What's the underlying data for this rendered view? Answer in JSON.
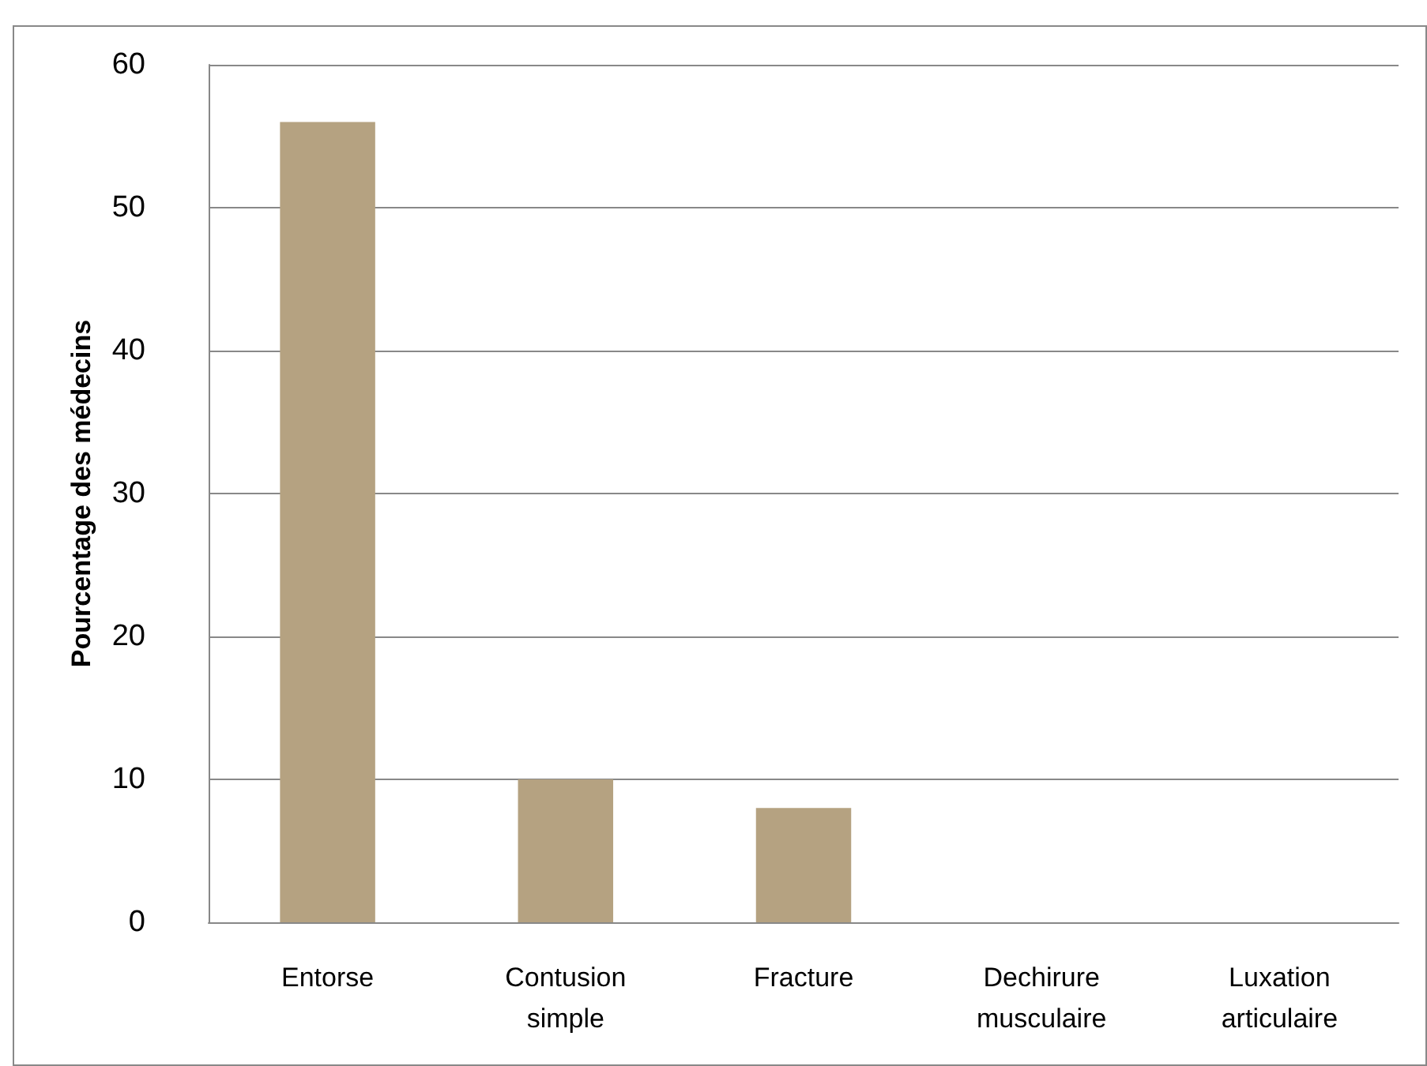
{
  "chart_data": {
    "type": "bar",
    "ylabel": "Pourcentage des médecins",
    "categories": [
      "Entorse",
      "Contusion\nsimple",
      "Fracture",
      "Dechirure\nmusculaire",
      "Luxation\narticulaire"
    ],
    "values": [
      56,
      10,
      8,
      0,
      0
    ],
    "color": "#b5a281",
    "ylim": [
      0,
      60
    ],
    "yticks": [
      0,
      10,
      20,
      30,
      40,
      50,
      60
    ],
    "grid": "y"
  }
}
